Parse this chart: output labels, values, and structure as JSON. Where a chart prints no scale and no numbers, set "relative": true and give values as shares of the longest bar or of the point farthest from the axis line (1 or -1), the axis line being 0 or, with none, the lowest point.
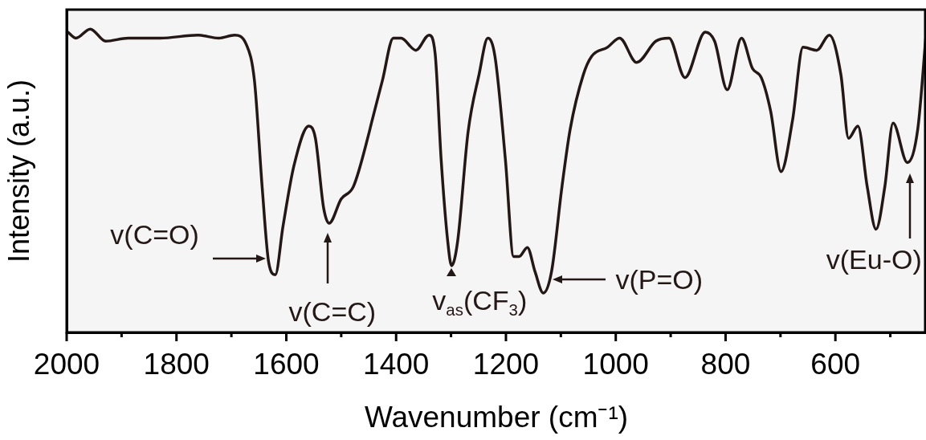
{
  "chart_data": {
    "type": "line",
    "relative": true,
    "xlabel": "Wavenumber (cm⁻¹)",
    "ylabel": "Intensity (a.u.)",
    "xlim": [
      2000,
      435
    ],
    "xticks": [
      2000,
      {
        "value": 1900,
        "label": null
      },
      1800,
      {
        "value": 1700,
        "label": null
      },
      1600,
      {
        "value": 1500,
        "label": null
      },
      1400,
      {
        "value": 1300,
        "label": null
      },
      1200,
      {
        "value": 1100,
        "label": null
      },
      1000,
      {
        "value": 900,
        "label": null
      },
      800,
      {
        "value": 700,
        "label": null
      },
      600,
      {
        "value": 500,
        "label": null
      }
    ],
    "x": [
      1998,
      1983,
      1957,
      1929,
      1888,
      1830,
      1761,
      1723,
      1694,
      1673,
      1658,
      1644,
      1632,
      1620,
      1606,
      1586,
      1559,
      1547,
      1532,
      1522,
      1500,
      1478,
      1449,
      1445,
      1425,
      1405,
      1391,
      1364,
      1340,
      1329,
      1318,
      1306,
      1299,
      1288,
      1269,
      1249,
      1233,
      1220,
      1201,
      1186,
      1176,
      1161,
      1147,
      1132,
      1117,
      1098,
      1083,
      1059,
      1044,
      1015,
      993,
      962,
      927,
      903,
      874,
      837,
      820,
      797,
      771,
      751,
      735,
      718,
      699,
      678,
      659,
      634,
      611,
      590,
      576,
      559,
      542,
      526,
      510,
      495,
      469,
      450,
      435
    ],
    "series": [
      {
        "color": "#231815",
        "values": [
          0.99,
          0.97,
          1.0,
          0.96,
          0.97,
          0.97,
          0.98,
          0.97,
          0.98,
          0.95,
          0.83,
          0.48,
          0.23,
          0.19,
          0.35,
          0.55,
          0.68,
          0.64,
          0.41,
          0.36,
          0.44,
          0.48,
          0.66,
          0.69,
          0.83,
          0.97,
          0.97,
          0.93,
          0.98,
          0.92,
          0.57,
          0.3,
          0.22,
          0.3,
          0.66,
          0.85,
          0.97,
          0.91,
          0.57,
          0.25,
          0.25,
          0.28,
          0.2,
          0.13,
          0.2,
          0.48,
          0.67,
          0.85,
          0.91,
          0.94,
          0.97,
          0.89,
          0.96,
          0.97,
          0.84,
          0.99,
          0.96,
          0.8,
          0.97,
          0.87,
          0.84,
          0.73,
          0.53,
          0.7,
          0.94,
          0.93,
          0.98,
          0.85,
          0.64,
          0.68,
          0.48,
          0.34,
          0.48,
          0.69,
          0.56,
          0.67,
          0.98
        ]
      }
    ],
    "grid": false,
    "legend": false,
    "marker": "none",
    "line_style": "solid",
    "annotations": [
      {
        "text": "v(C=O)",
        "x": 1620,
        "y": 0.19
      },
      {
        "text": "v(C=C)",
        "x": 1522,
        "y": 0.36
      },
      {
        "text": "v$_{as}$(CF$_{3}$)",
        "x": 1299,
        "y": 0.22
      },
      {
        "text": "v(P=O)",
        "x": 1132,
        "y": 0.13
      },
      {
        "text": "v(Eu-O)",
        "x": 469,
        "y": 0.56
      }
    ]
  }
}
